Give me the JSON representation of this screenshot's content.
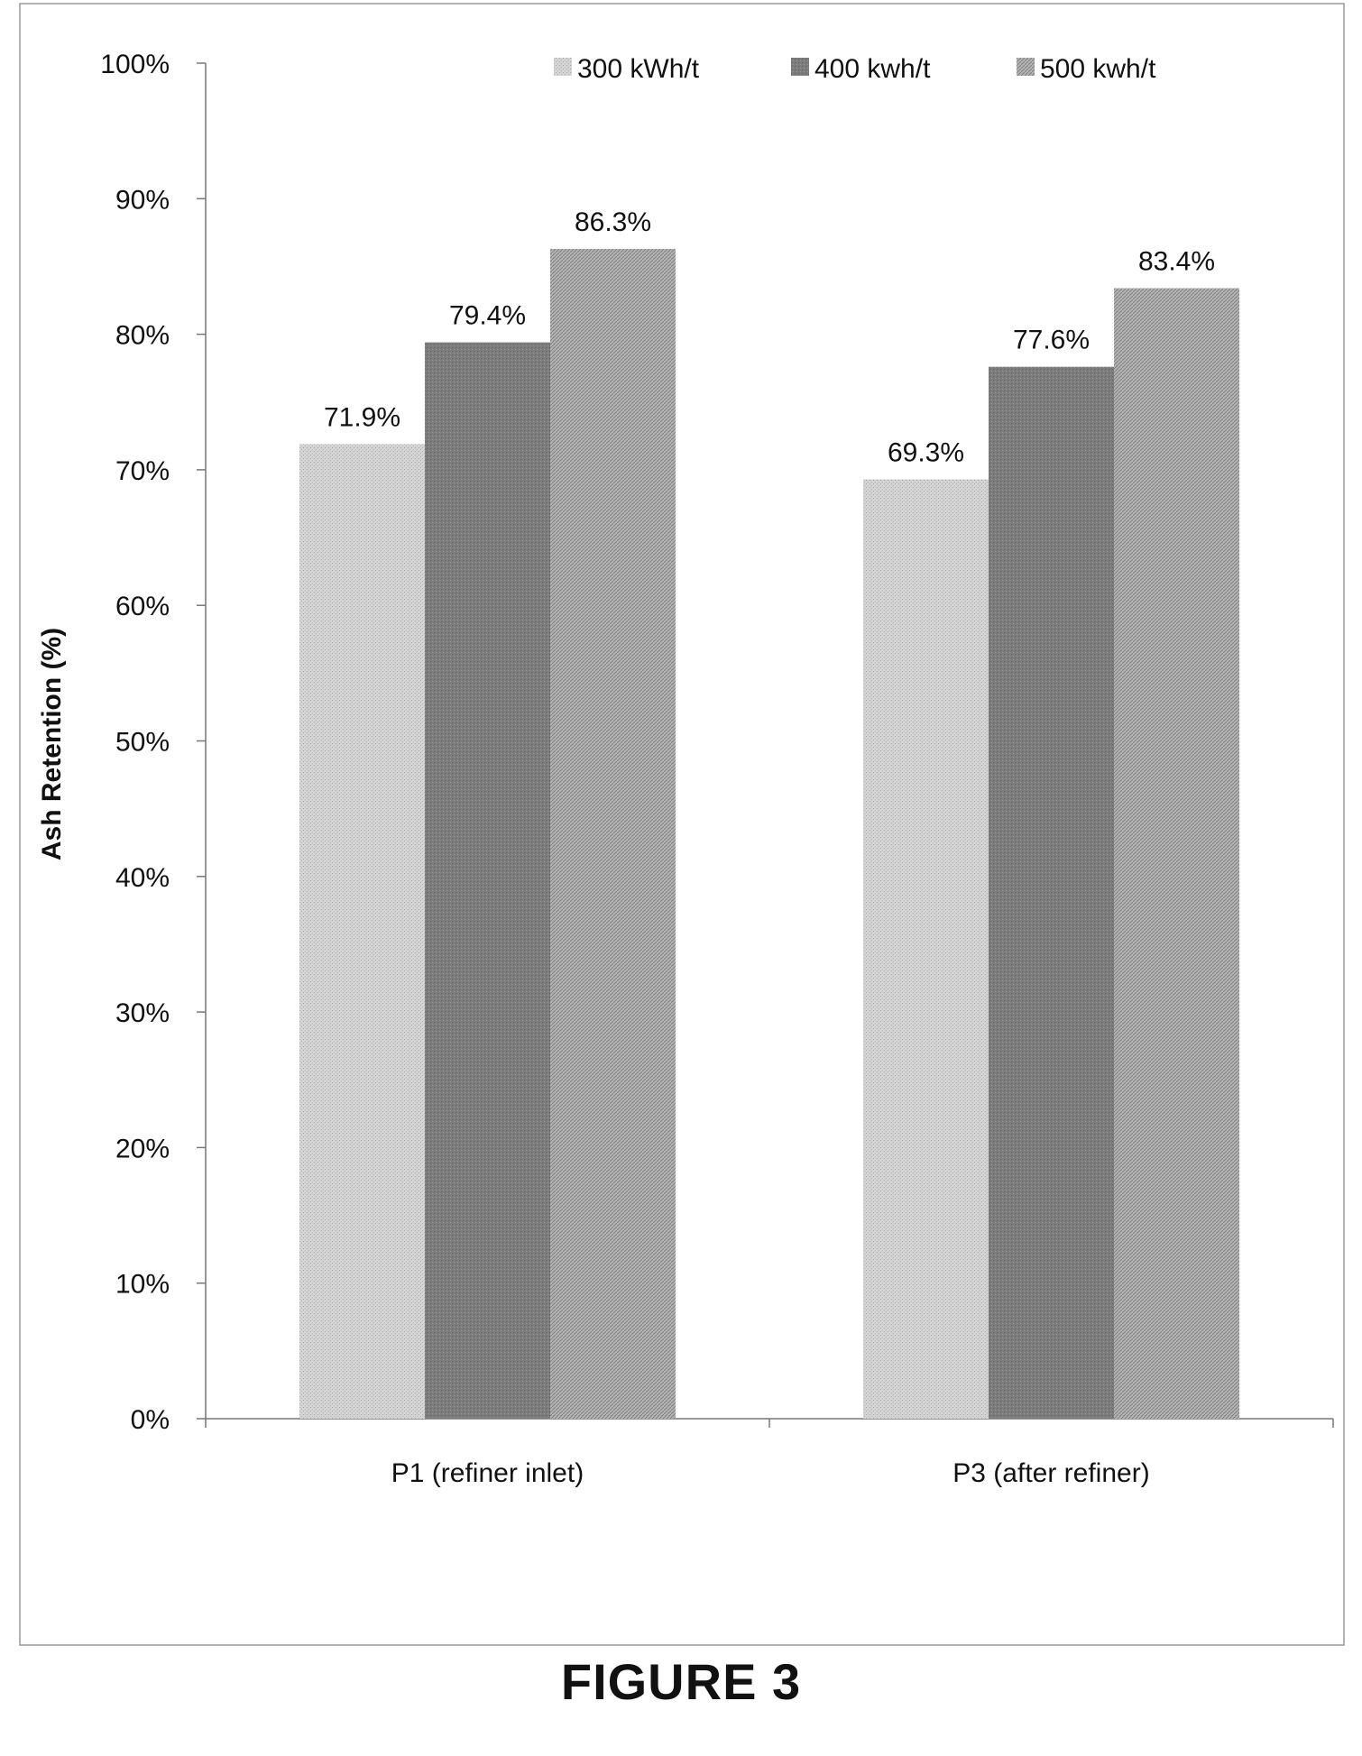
{
  "figure_caption": "FIGURE 3",
  "colors": {
    "series_300": "#c8c8c8",
    "series_400": "#7a7a7a",
    "series_500": "#a3a3a3",
    "axis": "#777777",
    "frame": "#999999"
  },
  "chart_data": {
    "type": "bar",
    "title": "",
    "xlabel": "",
    "ylabel": "Ash Retention (%)",
    "categories": [
      "P1 (refiner inlet)",
      "P3 (after refiner)"
    ],
    "series": [
      {
        "name": "300 kWh/t",
        "values": [
          71.9,
          69.3
        ],
        "labels": [
          "71.9%",
          "69.3%"
        ]
      },
      {
        "name": "400 kwh/t",
        "values": [
          79.4,
          77.6
        ],
        "labels": [
          "79.4%",
          "77.6%"
        ]
      },
      {
        "name": "500 kwh/t",
        "values": [
          86.3,
          83.4
        ],
        "labels": [
          "86.3%",
          "83.4%"
        ]
      }
    ],
    "ylim": [
      0,
      100
    ],
    "yticks": [
      "0%",
      "10%",
      "20%",
      "30%",
      "40%",
      "50%",
      "60%",
      "70%",
      "80%",
      "90%",
      "100%"
    ],
    "grid": false,
    "legend": "top-right"
  }
}
